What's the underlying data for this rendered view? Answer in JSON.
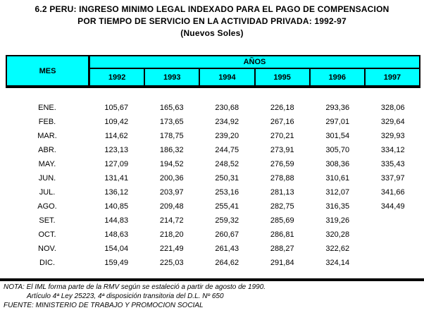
{
  "title": {
    "line1": "6.2 PERU: INGRESO MINIMO LEGAL INDEXADO PARA EL PAGO DE COMPENSACION",
    "line2": "POR TIEMPO DE SERVICIO EN LA ACTIVIDAD PRIVADA: 1992-97",
    "line3": "(Nuevos Soles)"
  },
  "table": {
    "mes_header": "MES",
    "anos_header": "AÑOS",
    "years": [
      "1992",
      "1993",
      "1994",
      "1995",
      "1996",
      "1997"
    ],
    "rows": [
      {
        "mes": "ENE.",
        "values": [
          "105,67",
          "165,63",
          "230,68",
          "226,18",
          "293,36",
          "328,06"
        ]
      },
      {
        "mes": "FEB.",
        "values": [
          "109,42",
          "173,65",
          "234,92",
          "267,16",
          "297,01",
          "329,64"
        ]
      },
      {
        "mes": "MAR.",
        "values": [
          "114,62",
          "178,75",
          "239,20",
          "270,21",
          "301,54",
          "329,93"
        ]
      },
      {
        "mes": "ABR.",
        "values": [
          "123,13",
          "186,32",
          "244,75",
          "273,91",
          "305,70",
          "334,12"
        ]
      },
      {
        "mes": "MAY.",
        "values": [
          "127,09",
          "194,52",
          "248,52",
          "276,59",
          "308,36",
          "335,43"
        ]
      },
      {
        "mes": "JUN.",
        "values": [
          "131,41",
          "200,36",
          "250,31",
          "278,88",
          "310,61",
          "337,97"
        ]
      },
      {
        "mes": "JUL.",
        "values": [
          "136,12",
          "203,97",
          "253,16",
          "281,13",
          "312,07",
          "341,66"
        ]
      },
      {
        "mes": "AGO.",
        "values": [
          "140,85",
          "209,48",
          "255,41",
          "282,75",
          "316,35",
          "344,49"
        ]
      },
      {
        "mes": "SET.",
        "values": [
          "144,83",
          "214,72",
          "259,32",
          "285,69",
          "319,26",
          ""
        ]
      },
      {
        "mes": "OCT.",
        "values": [
          "148,63",
          "218,20",
          "260,67",
          "286,81",
          "320,28",
          ""
        ]
      },
      {
        "mes": "NOV.",
        "values": [
          "154,04",
          "221,49",
          "261,43",
          "288,27",
          "322,62",
          ""
        ]
      },
      {
        "mes": "DIC.",
        "values": [
          "159,49",
          "225,03",
          "264,62",
          "291,84",
          "324,14",
          ""
        ]
      }
    ]
  },
  "footer": {
    "nota_line1": "NOTA: El IML forma parte de la RMV según se estaleció a partir de agosto de 1990.",
    "nota_line2": "Artículo 4ª Ley 25223, 4ª disposición transitoria del D.L. Nº 650",
    "fuente": "FUENTE: MINISTERIO DE TRABAJO Y PROMOCION SOCIAL"
  },
  "colors": {
    "header_bg": "#00FFFF",
    "border": "#000000"
  }
}
